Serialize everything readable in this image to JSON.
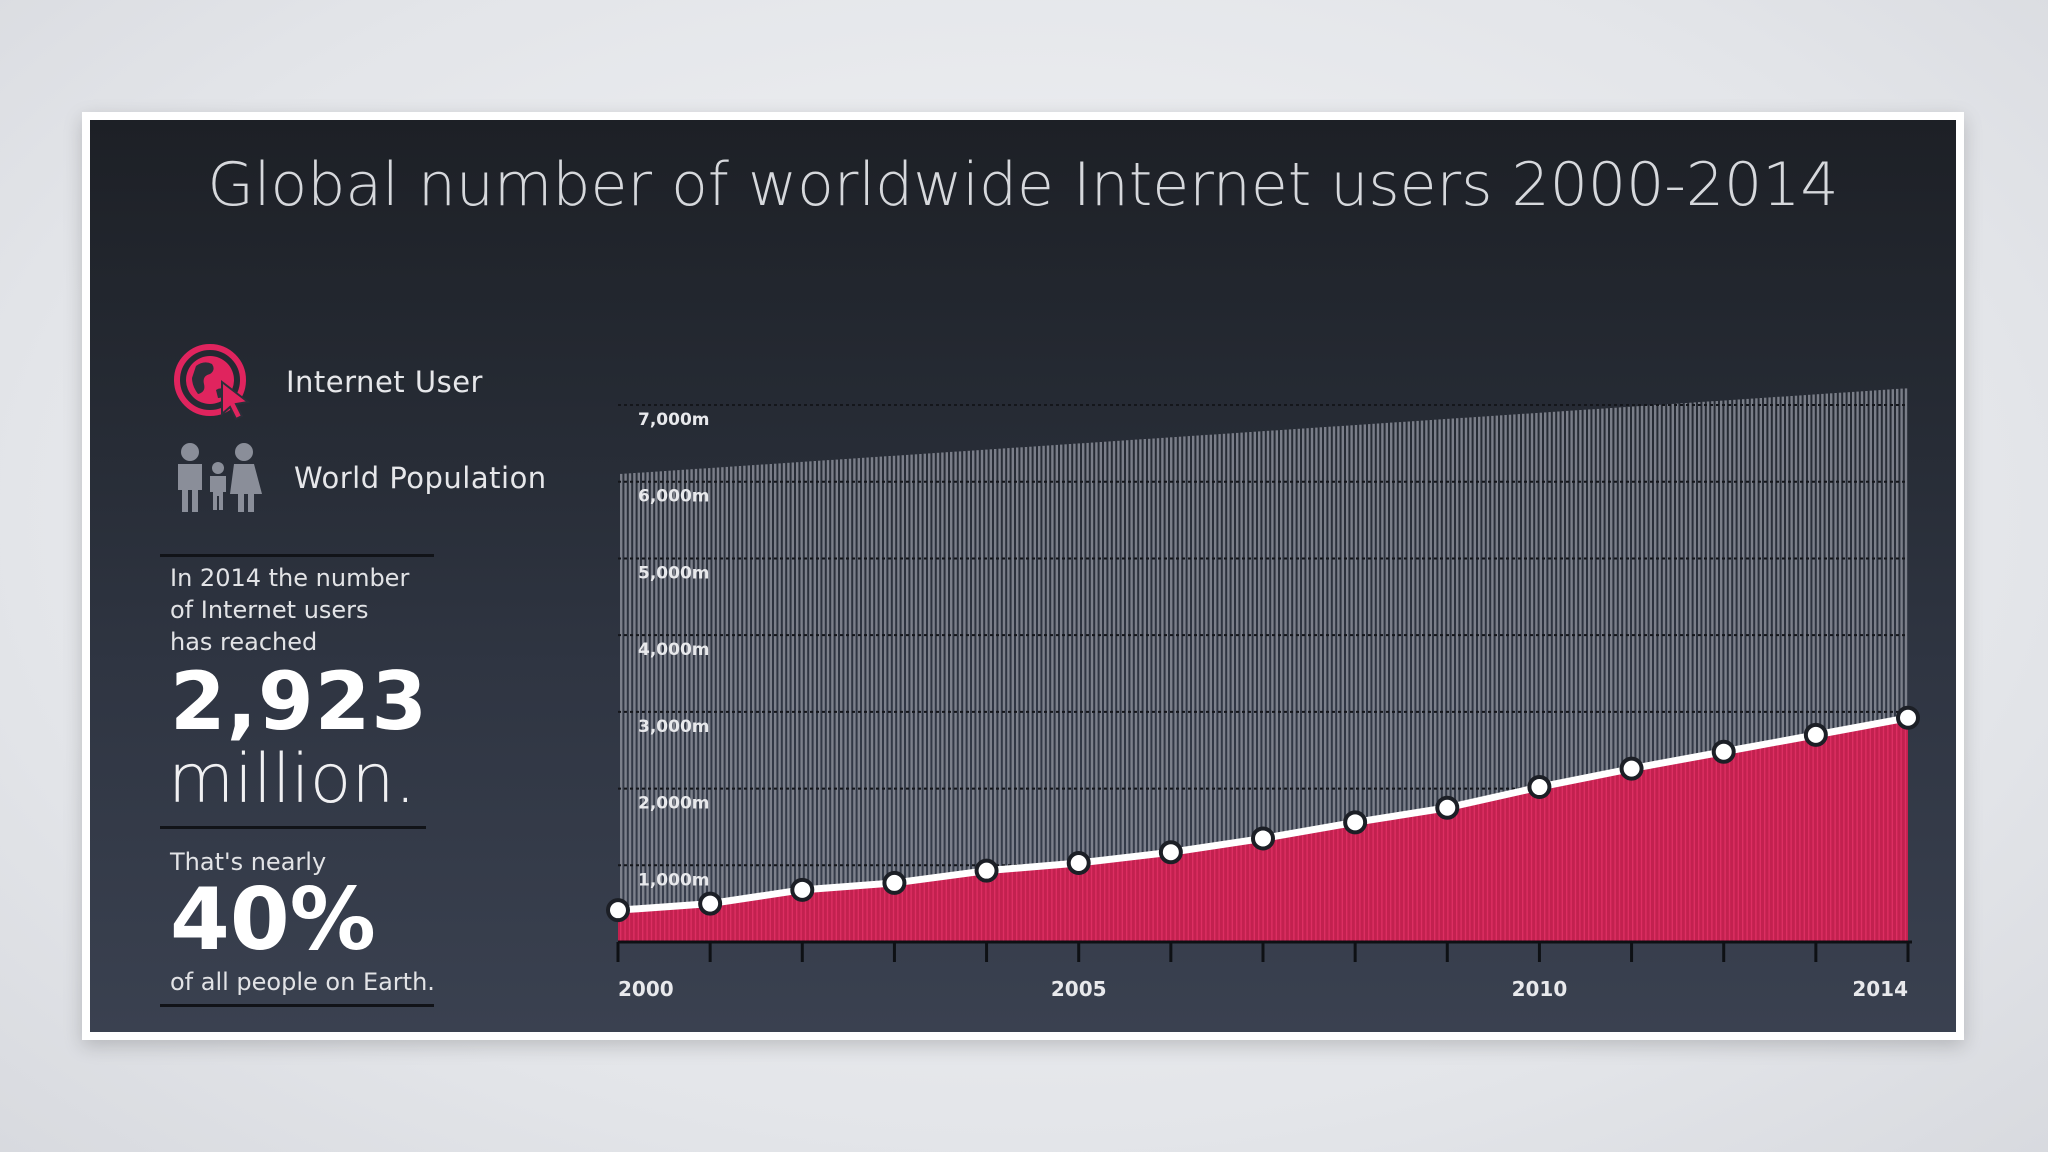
{
  "title": "Global number of worldwide Internet users 2000-2014",
  "legend": {
    "internet_user": {
      "label": "Internet User",
      "icon": "globe-cursor-icon",
      "color": "#e0245e"
    },
    "world_population": {
      "label": "World Population",
      "icon": "family-icon",
      "color": "#8a8e99"
    }
  },
  "stats": {
    "intro": [
      "In 2014 the number",
      "of Internet users",
      "has reached"
    ],
    "users_value": "2,923",
    "users_unit": "million.",
    "share_intro": "That's nearly",
    "share_value": "40%",
    "share_outro": "of all people on Earth."
  },
  "colors": {
    "internet_fill": "#c2214f",
    "internet_line": "#e8356b",
    "population_bars": "#8a8d98",
    "marker_fill": "#ffffff"
  },
  "chart_data": {
    "type": "area",
    "title": "Global number of worldwide Internet users 2000-2014",
    "y_unit": "m",
    "ylim": [
      0,
      7300
    ],
    "y_ticks": [
      {
        "value": 1000,
        "label": "1,000m"
      },
      {
        "value": 2000,
        "label": "2,000m"
      },
      {
        "value": 3000,
        "label": "3,000m"
      },
      {
        "value": 4000,
        "label": "4,000m"
      },
      {
        "value": 5000,
        "label": "5,000m"
      },
      {
        "value": 6000,
        "label": "6,000m"
      },
      {
        "value": 7000,
        "label": "7,000m"
      }
    ],
    "x_ticks": [
      {
        "value": 2000,
        "label": "2000"
      },
      {
        "value": 2005,
        "label": "2005"
      },
      {
        "value": 2010,
        "label": "2010"
      },
      {
        "value": 2014,
        "label": "2014"
      }
    ],
    "x": [
      2000,
      2001,
      2002,
      2003,
      2004,
      2005,
      2006,
      2007,
      2008,
      2009,
      2010,
      2011,
      2012,
      2013,
      2014
    ],
    "grid": true,
    "series": [
      {
        "name": "Internet User",
        "values": [
          415,
          500,
          680,
          770,
          930,
          1030,
          1170,
          1350,
          1560,
          1750,
          2020,
          2260,
          2480,
          2700,
          2923
        ]
      },
      {
        "name": "World Population",
        "values": [
          6100,
          6180,
          6260,
          6340,
          6420,
          6500,
          6580,
          6660,
          6740,
          6820,
          6900,
          6980,
          7060,
          7140,
          7220
        ]
      }
    ]
  }
}
